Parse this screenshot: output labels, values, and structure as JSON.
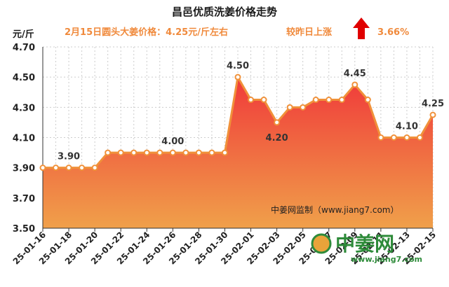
{
  "chart_data": {
    "type": "area",
    "title": "昌邑优质洗姜价格走势",
    "subtitle": "2月15日圆头大姜价格：4.25元/斤左右",
    "change_label": "较昨日上涨",
    "change_value": "3.66%",
    "change_direction": "up",
    "ylabel": "元/斤",
    "ylim": [
      3.5,
      4.7
    ],
    "yticks": [
      "3.50",
      "3.70",
      "3.90",
      "4.10",
      "4.30",
      "4.50",
      "4.70"
    ],
    "grid": true,
    "x": [
      "25-01-16",
      "25-01-17",
      "25-01-18",
      "25-01-19",
      "25-01-20",
      "25-01-21",
      "25-01-22",
      "25-01-23",
      "25-01-24",
      "25-01-25",
      "25-01-26",
      "25-01-27",
      "25-01-28",
      "25-01-29",
      "25-01-30",
      "25-01-31",
      "25-02-01",
      "25-02-02",
      "25-02-03",
      "25-02-04",
      "25-02-05",
      "25-02-06",
      "25-02-07",
      "25-02-08",
      "25-02-09",
      "25-02-10",
      "25-02-11",
      "25-02-12",
      "25-02-13",
      "25-02-14",
      "25-02-15"
    ],
    "xticks": [
      "25-01-16",
      "25-01-18",
      "25-01-20",
      "25-01-22",
      "25-01-24",
      "25-01-26",
      "25-01-28",
      "25-01-30",
      "25-02-01",
      "25-02-03",
      "25-02-05",
      "25-02-07",
      "25-02-09",
      "25-02-11",
      "25-02-13",
      "25-02-15"
    ],
    "values": [
      3.9,
      3.9,
      3.9,
      3.9,
      3.9,
      4.0,
      4.0,
      4.0,
      4.0,
      4.0,
      4.0,
      4.0,
      4.0,
      4.0,
      4.0,
      4.5,
      4.35,
      4.35,
      4.2,
      4.3,
      4.3,
      4.35,
      4.35,
      4.35,
      4.45,
      4.35,
      4.1,
      4.1,
      4.1,
      4.1,
      4.25
    ],
    "data_labels": [
      {
        "index": 2,
        "text": "3.90"
      },
      {
        "index": 10,
        "text": "4.00"
      },
      {
        "index": 15,
        "text": "4.50"
      },
      {
        "index": 18,
        "text": "4.20"
      },
      {
        "index": 24,
        "text": "4.45"
      },
      {
        "index": 28,
        "text": "4.10"
      },
      {
        "index": 30,
        "text": "4.25"
      }
    ],
    "source": "中姜网监制（www.jiang7.com）",
    "colors": {
      "line": "#f0913a",
      "fill_top": "#f03a3a",
      "fill_bottom": "#f0a04a",
      "arrow": "#e00000",
      "grid": "#cccccc"
    }
  },
  "logo": {
    "text": "中姜网",
    "url": "www.jiang7.com"
  }
}
